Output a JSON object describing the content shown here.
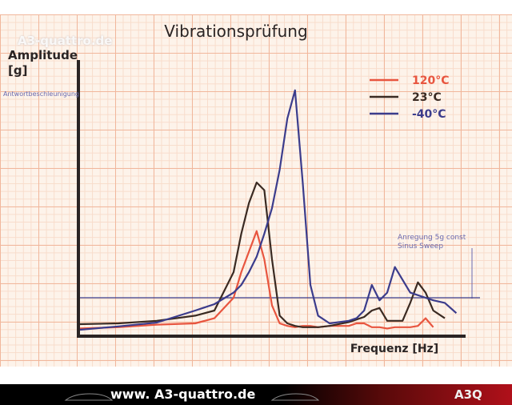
{
  "chart_data": {
    "type": "line",
    "title": "Vibrationsprüfung",
    "y_label": "Amplitude [g]",
    "x_label": "Frequenz [Hz]",
    "annotations": [
      "Antwortbeschleunigung",
      "Anregung 5g const Sinus Sweep"
    ],
    "x": [
      0,
      10,
      20,
      30,
      35,
      40,
      42,
      44,
      46,
      48,
      50,
      52,
      54,
      56,
      58,
      60,
      62,
      65,
      70,
      72,
      74,
      76,
      78,
      80,
      82,
      84,
      86,
      88,
      90,
      92,
      95,
      98
    ],
    "xlim": [
      0,
      100
    ],
    "ylim": [
      0,
      100
    ],
    "reference_line": 15,
    "reference_color": "#3b3c8c",
    "series": [
      {
        "name": "120°C",
        "color": "#e8553f",
        "values": [
          3,
          3.5,
          4.5,
          5,
          7,
          15,
          25,
          33,
          41,
          30,
          12,
          5,
          4,
          3.5,
          4,
          4,
          3.5,
          4,
          4,
          5,
          5,
          3.5,
          3.5,
          3,
          3.5,
          3.5,
          3.5,
          4,
          7,
          3.5,
          null,
          null
        ]
      },
      {
        "name": "23°C",
        "color": "#3a2a22",
        "values": [
          4.7,
          5,
          6,
          8,
          10,
          25,
          40,
          52,
          60,
          57,
          30,
          8,
          5,
          4,
          3.5,
          3.5,
          3.5,
          4,
          5.5,
          6.5,
          7.5,
          10,
          11,
          6,
          6,
          6,
          13,
          21,
          17,
          10,
          7,
          null
        ]
      },
      {
        "name": "-40°C",
        "color": "#3b3c8c",
        "values": [
          2.5,
          3.8,
          5.3,
          10,
          12.5,
          17,
          20,
          25,
          31,
          40,
          50,
          65,
          85,
          96,
          60,
          20,
          8,
          5,
          6,
          7,
          10,
          20,
          14,
          17,
          27,
          22,
          17,
          16,
          15,
          14,
          13,
          9
        ]
      }
    ]
  },
  "watermark": "A3-quattro.de",
  "footer": {
    "url": "www. A3-quattro.de",
    "logo": "A3Q"
  }
}
